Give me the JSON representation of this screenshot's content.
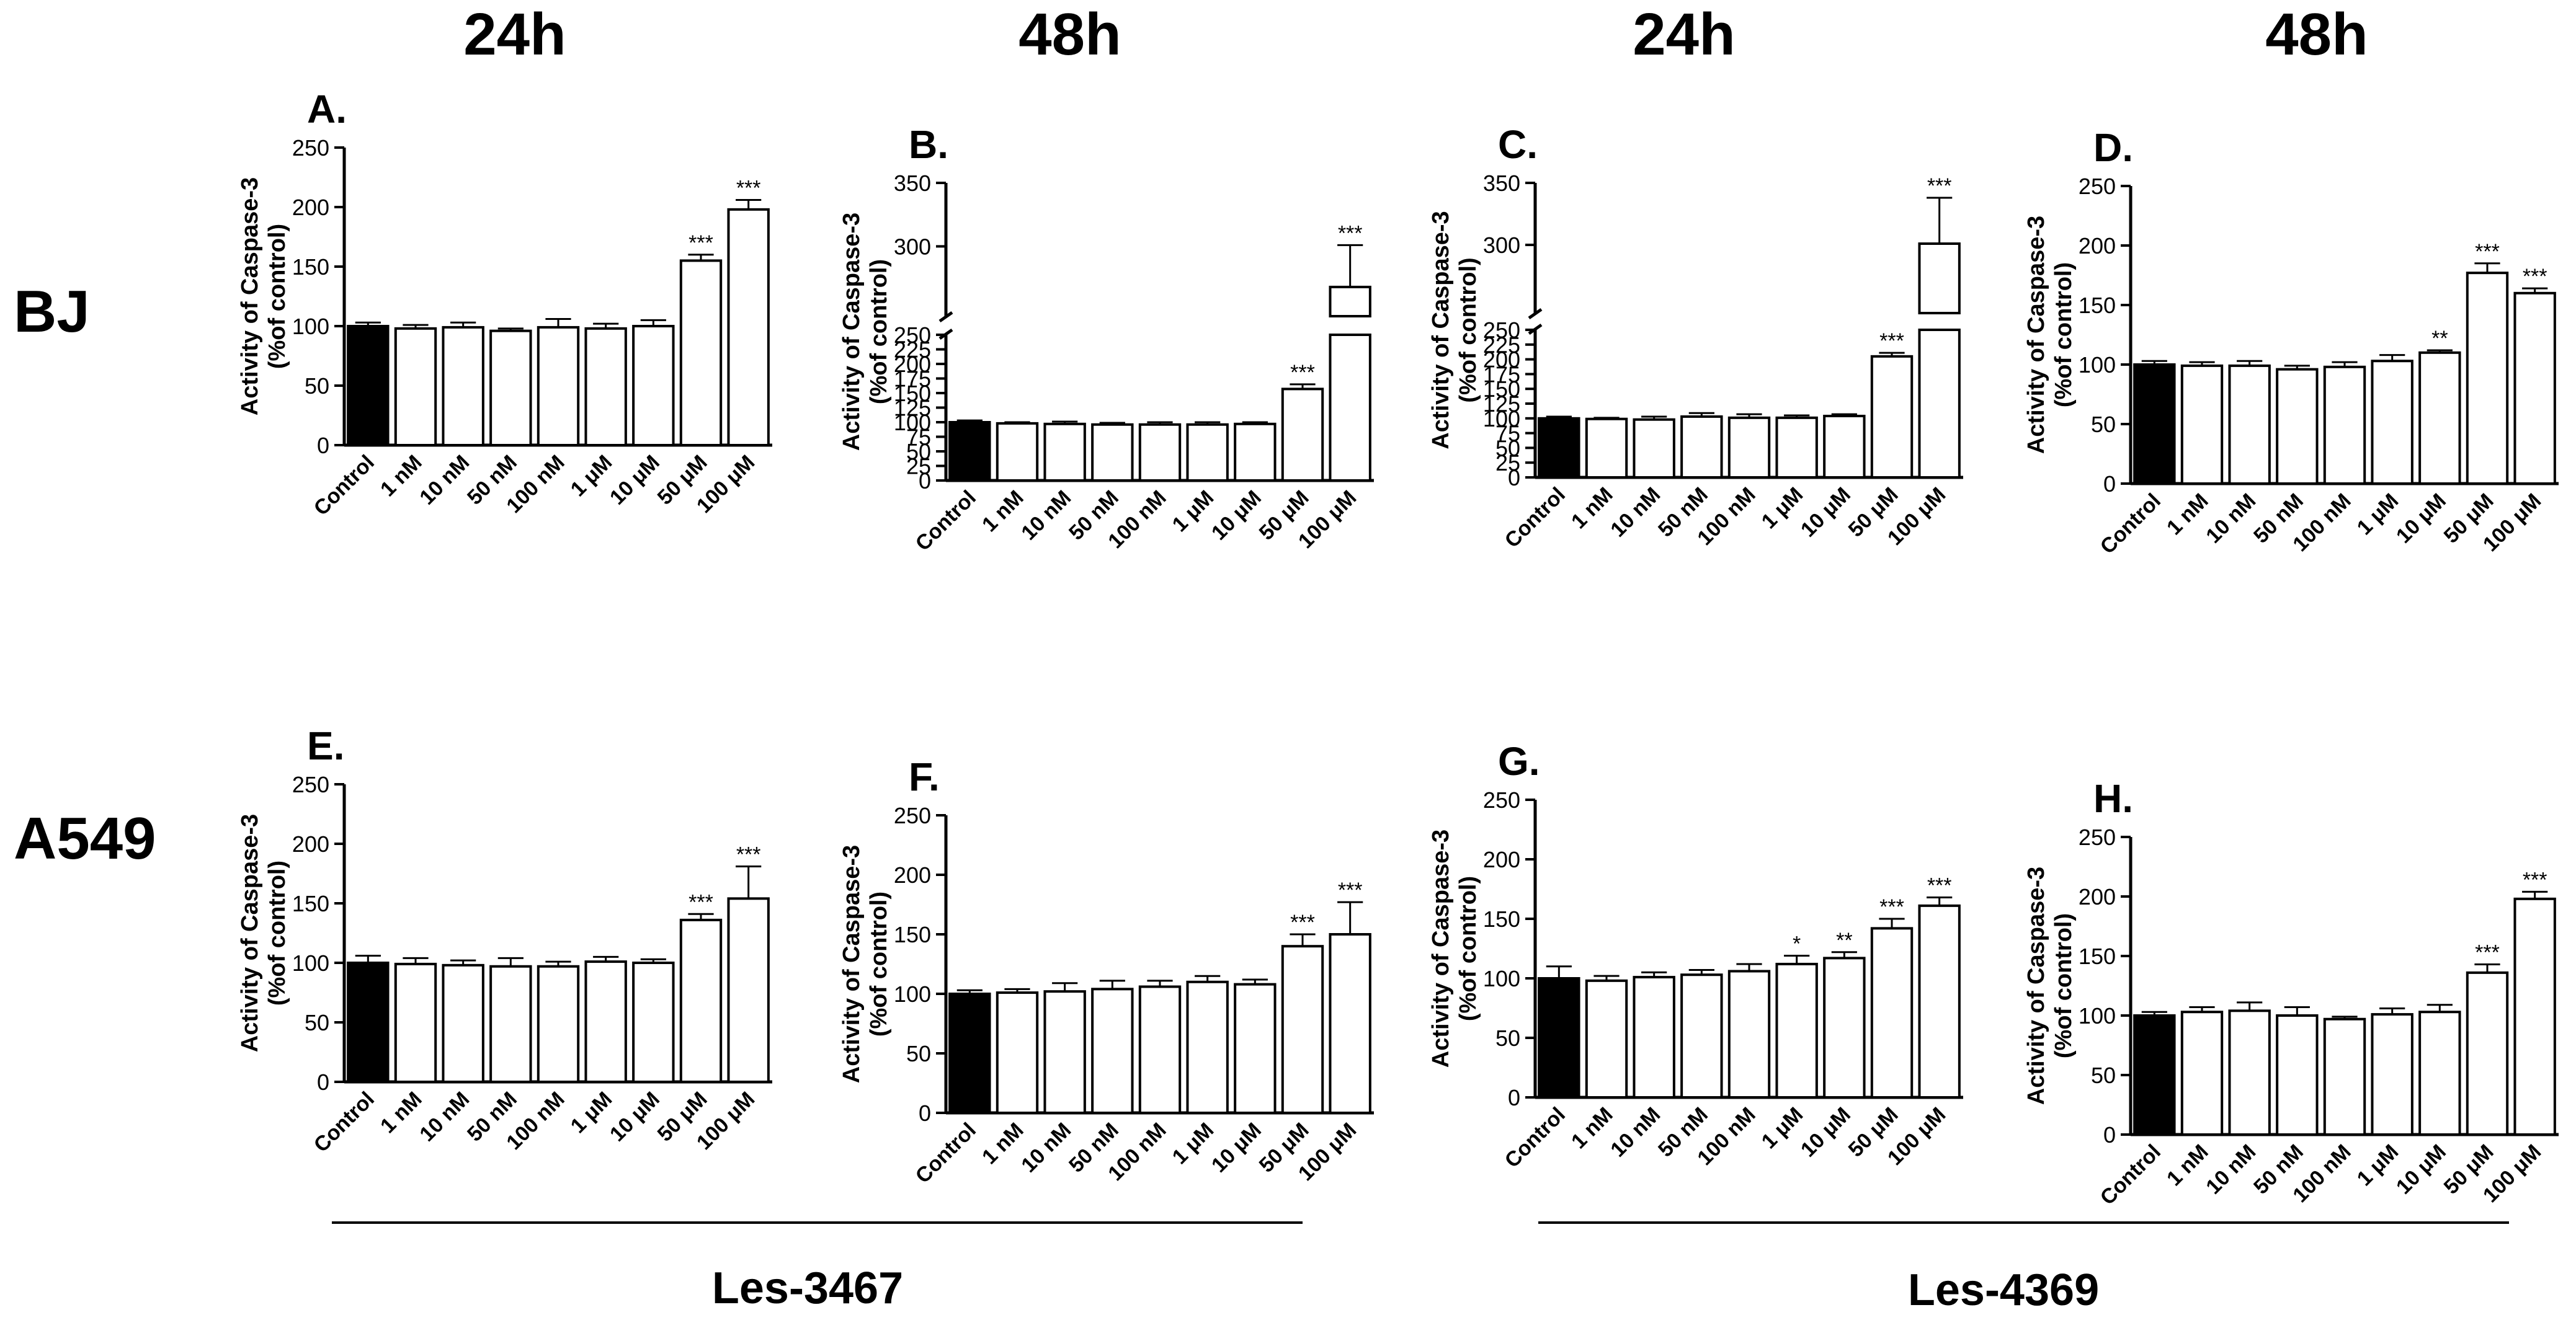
{
  "figure": {
    "column_headings": [
      "24h",
      "48h",
      "24h",
      "48h"
    ],
    "row_labels": [
      "BJ",
      "A549"
    ],
    "compound_labels": [
      "Les-3467",
      "Les-4369"
    ],
    "colors": {
      "control_bar": "#000000",
      "treatment_bar": "#ffffff",
      "axis": "#000000"
    }
  },
  "chart_data": [
    {
      "type": "bar",
      "panel": "A.",
      "cell_line": "BJ",
      "time": "24h",
      "compound": "Les-3467",
      "categories": [
        "Control",
        "1 nM",
        "10 nM",
        "50 nM",
        "100 nM",
        "1 μM",
        "10 μM",
        "50 μM",
        "100 μM"
      ],
      "values": [
        100,
        98,
        99,
        96,
        99,
        98,
        100,
        155,
        198
      ],
      "errors": [
        3,
        3,
        4,
        2,
        7,
        4,
        5,
        5,
        8
      ],
      "significance": [
        "",
        "",
        "",
        "",
        "",
        "",
        "",
        "***",
        "***"
      ],
      "ylabel": "Activity of Caspase-3\n(%of control)",
      "ylim": [
        0,
        250
      ],
      "yticks": [
        0,
        50,
        100,
        150,
        200,
        250
      ],
      "broken_axis": null
    },
    {
      "type": "bar",
      "panel": "B.",
      "cell_line": "BJ",
      "time": "48h",
      "compound": "Les-3467",
      "categories": [
        "Control",
        "1 nM",
        "10 nM",
        "50 nM",
        "100 nM",
        "1 μM",
        "10 μM",
        "50 μM",
        "100 μM"
      ],
      "values": [
        100,
        98,
        97,
        96,
        96,
        96,
        97,
        157,
        268
      ],
      "errors": [
        3,
        2,
        4,
        3,
        4,
        4,
        3,
        8,
        33
      ],
      "significance": [
        "",
        "",
        "",
        "",
        "",
        "",
        "",
        "***",
        "***"
      ],
      "ylabel": "Activity of Caspase-3\n(%of control)",
      "ylim": [
        0,
        350
      ],
      "yticks": [
        0,
        25,
        50,
        75,
        100,
        125,
        150,
        175,
        200,
        225,
        250,
        300,
        350
      ],
      "broken_axis": {
        "lower": [
          0,
          250
        ],
        "upper": [
          245,
          350
        ]
      }
    },
    {
      "type": "bar",
      "panel": "C.",
      "cell_line": "BJ",
      "time": "24h",
      "compound": "Les-4369",
      "categories": [
        "Control",
        "1 nM",
        "10 nM",
        "50 nM",
        "100 nM",
        "1 μM",
        "10 μM",
        "50 μM",
        "100 μM"
      ],
      "values": [
        100,
        99,
        98,
        103,
        101,
        101,
        104,
        205,
        301
      ],
      "errors": [
        3,
        2,
        5,
        6,
        6,
        4,
        3,
        6,
        37
      ],
      "significance": [
        "",
        "",
        "",
        "",
        "",
        "",
        "",
        "***",
        "***"
      ],
      "ylabel": "Activity of Caspase-3\n(%of control)",
      "ylim": [
        0,
        350
      ],
      "yticks": [
        0,
        25,
        50,
        75,
        100,
        125,
        150,
        175,
        200,
        225,
        250,
        300,
        350
      ],
      "broken_axis": {
        "lower": [
          0,
          250
        ],
        "upper": [
          245,
          350
        ]
      }
    },
    {
      "type": "bar",
      "panel": "D.",
      "cell_line": "BJ",
      "time": "48h",
      "compound": "Les-4369",
      "categories": [
        "Control",
        "1 nM",
        "10 nM",
        "50 nM",
        "100 nM",
        "1 μM",
        "10 μM",
        "50 μM",
        "100 μM"
      ],
      "values": [
        100,
        99,
        99,
        96,
        98,
        103,
        110,
        177,
        160
      ],
      "errors": [
        3,
        3,
        4,
        3,
        4,
        5,
        2,
        8,
        4
      ],
      "significance": [
        "",
        "",
        "",
        "",
        "",
        "",
        "**",
        "***",
        "***"
      ],
      "ylabel": "Activity of Caspase-3\n(%of control)",
      "ylim": [
        0,
        250
      ],
      "yticks": [
        0,
        50,
        100,
        150,
        200,
        250
      ],
      "broken_axis": null
    },
    {
      "type": "bar",
      "panel": "E.",
      "cell_line": "A549",
      "time": "24h",
      "compound": "Les-3467",
      "categories": [
        "Control",
        "1 nM",
        "10 nM",
        "50 nM",
        "100 nM",
        "1 μM",
        "10 μM",
        "50 μM",
        "100 μM"
      ],
      "values": [
        100,
        99,
        98,
        97,
        97,
        101,
        100,
        136,
        154
      ],
      "errors": [
        6,
        5,
        4,
        7,
        4,
        4,
        3,
        5,
        27
      ],
      "significance": [
        "",
        "",
        "",
        "",
        "",
        "",
        "",
        "***",
        "***"
      ],
      "ylabel": "Activity of Caspase-3\n(%of control)",
      "ylim": [
        0,
        250
      ],
      "yticks": [
        0,
        50,
        100,
        150,
        200,
        250
      ],
      "broken_axis": null
    },
    {
      "type": "bar",
      "panel": "F.",
      "cell_line": "A549",
      "time": "48h",
      "compound": "Les-3467",
      "categories": [
        "Control",
        "1 nM",
        "10 nM",
        "50 nM",
        "100 nM",
        "1 μM",
        "10 μM",
        "50 μM",
        "100 μM"
      ],
      "values": [
        100,
        101,
        102,
        104,
        106,
        110,
        108,
        140,
        150
      ],
      "errors": [
        3,
        3,
        7,
        7,
        5,
        5,
        4,
        10,
        27
      ],
      "significance": [
        "",
        "",
        "",
        "",
        "",
        "",
        "",
        "***",
        "***"
      ],
      "ylabel": "Activity of Caspase-3\n(%of control)",
      "ylim": [
        0,
        250
      ],
      "yticks": [
        0,
        50,
        100,
        150,
        200,
        250
      ],
      "broken_axis": null
    },
    {
      "type": "bar",
      "panel": "G.",
      "cell_line": "A549",
      "time": "24h",
      "compound": "Les-4369",
      "categories": [
        "Control",
        "1 nM",
        "10 nM",
        "50 nM",
        "100 nM",
        "1 μM",
        "10 μM",
        "50 μM",
        "100 μM"
      ],
      "values": [
        100,
        98,
        101,
        103,
        106,
        112,
        117,
        142,
        161
      ],
      "errors": [
        10,
        4,
        4,
        4,
        6,
        7,
        5,
        8,
        7
      ],
      "significance": [
        "",
        "",
        "",
        "",
        "",
        "*",
        "**",
        "***",
        "***"
      ],
      "ylabel": "Activity of Caspase-3\n(%of control)",
      "ylim": [
        0,
        250
      ],
      "yticks": [
        0,
        50,
        100,
        150,
        200,
        250
      ],
      "broken_axis": null
    },
    {
      "type": "bar",
      "panel": "H.",
      "cell_line": "A549",
      "time": "48h",
      "compound": "Les-4369",
      "categories": [
        "Control",
        "1 nM",
        "10 nM",
        "50 nM",
        "100 nM",
        "1 μM",
        "10 μM",
        "50 μM",
        "100 μM"
      ],
      "values": [
        100,
        103,
        104,
        100,
        97,
        101,
        103,
        136,
        198
      ],
      "errors": [
        3,
        4,
        7,
        7,
        2,
        5,
        6,
        7,
        6
      ],
      "significance": [
        "",
        "",
        "",
        "",
        "",
        "",
        "",
        "***",
        "***"
      ],
      "ylabel": "Activity of Caspase-3\n(%of control)",
      "ylim": [
        0,
        250
      ],
      "yticks": [
        0,
        50,
        100,
        150,
        200,
        250
      ],
      "broken_axis": null
    }
  ]
}
